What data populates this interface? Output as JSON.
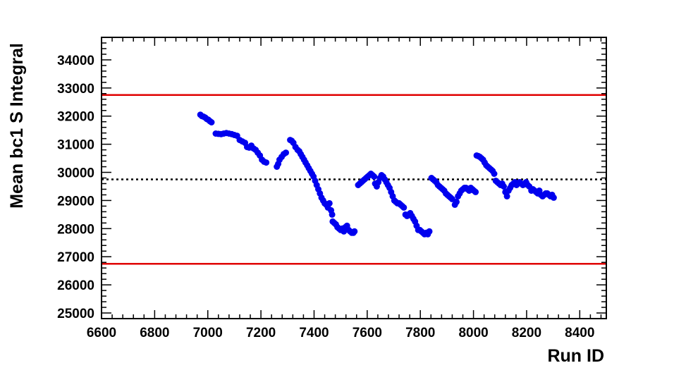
{
  "chart_data": {
    "type": "scatter",
    "xlabel": "Run ID",
    "ylabel": "Mean bc1 S Integral",
    "xlim": [
      6600,
      8500
    ],
    "ylim": [
      24800,
      34800
    ],
    "xticks": [
      6600,
      6800,
      7000,
      7200,
      7400,
      7600,
      7800,
      8000,
      8200,
      8400
    ],
    "yticks": [
      25000,
      26000,
      27000,
      28000,
      29000,
      30000,
      31000,
      32000,
      33000,
      34000
    ],
    "grid": false,
    "legend": "none",
    "reference_lines": [
      {
        "y": 32750,
        "color": "#e00000",
        "style": "solid"
      },
      {
        "y": 29750,
        "color": "#000000",
        "style": "dotted"
      },
      {
        "y": 26750,
        "color": "#e00000",
        "style": "solid"
      }
    ],
    "series": [
      {
        "color": "#0000ee",
        "points": [
          [
            6972,
            32050
          ],
          [
            6978,
            32000
          ],
          [
            6984,
            31980
          ],
          [
            6990,
            31950
          ],
          [
            6996,
            31900
          ],
          [
            7002,
            31870
          ],
          [
            7008,
            31820
          ],
          [
            7014,
            31780
          ],
          [
            7030,
            31380
          ],
          [
            7040,
            31370
          ],
          [
            7050,
            31360
          ],
          [
            7060,
            31380
          ],
          [
            7070,
            31400
          ],
          [
            7080,
            31380
          ],
          [
            7090,
            31360
          ],
          [
            7100,
            31330
          ],
          [
            7110,
            31300
          ],
          [
            7120,
            31150
          ],
          [
            7130,
            31100
          ],
          [
            7140,
            31050
          ],
          [
            7148,
            30900
          ],
          [
            7156,
            30880
          ],
          [
            7164,
            30950
          ],
          [
            7172,
            30850
          ],
          [
            7180,
            30800
          ],
          [
            7188,
            30700
          ],
          [
            7196,
            30600
          ],
          [
            7204,
            30450
          ],
          [
            7212,
            30380
          ],
          [
            7220,
            30350
          ],
          [
            7260,
            30200
          ],
          [
            7265,
            30300
          ],
          [
            7270,
            30450
          ],
          [
            7278,
            30550
          ],
          [
            7286,
            30650
          ],
          [
            7294,
            30700
          ],
          [
            7310,
            31150
          ],
          [
            7316,
            31120
          ],
          [
            7322,
            31050
          ],
          [
            7330,
            30900
          ],
          [
            7338,
            30800
          ],
          [
            7344,
            30750
          ],
          [
            7350,
            30650
          ],
          [
            7356,
            30550
          ],
          [
            7362,
            30450
          ],
          [
            7368,
            30350
          ],
          [
            7374,
            30250
          ],
          [
            7380,
            30150
          ],
          [
            7386,
            30050
          ],
          [
            7392,
            29950
          ],
          [
            7398,
            29850
          ],
          [
            7404,
            29700
          ],
          [
            7410,
            29550
          ],
          [
            7416,
            29400
          ],
          [
            7422,
            29250
          ],
          [
            7428,
            29100
          ],
          [
            7434,
            29000
          ],
          [
            7440,
            28900
          ],
          [
            7446,
            28850
          ],
          [
            7452,
            28750
          ],
          [
            7458,
            28900
          ],
          [
            7464,
            28650
          ],
          [
            7468,
            28500
          ],
          [
            7470,
            28250
          ],
          [
            7476,
            28200
          ],
          [
            7482,
            28150
          ],
          [
            7488,
            28050
          ],
          [
            7494,
            28000
          ],
          [
            7500,
            27950
          ],
          [
            7506,
            28000
          ],
          [
            7512,
            27900
          ],
          [
            7518,
            28050
          ],
          [
            7524,
            28100
          ],
          [
            7530,
            27950
          ],
          [
            7536,
            27900
          ],
          [
            7542,
            27850
          ],
          [
            7548,
            27850
          ],
          [
            7552,
            27900
          ],
          [
            7566,
            29550
          ],
          [
            7572,
            29600
          ],
          [
            7578,
            29650
          ],
          [
            7584,
            29700
          ],
          [
            7590,
            29750
          ],
          [
            7596,
            29800
          ],
          [
            7602,
            29850
          ],
          [
            7608,
            29900
          ],
          [
            7614,
            29950
          ],
          [
            7620,
            29900
          ],
          [
            7626,
            29850
          ],
          [
            7630,
            29600
          ],
          [
            7636,
            29500
          ],
          [
            7642,
            29650
          ],
          [
            7648,
            29800
          ],
          [
            7654,
            29900
          ],
          [
            7660,
            29850
          ],
          [
            7666,
            29750
          ],
          [
            7672,
            29650
          ],
          [
            7678,
            29550
          ],
          [
            7684,
            29450
          ],
          [
            7690,
            29300
          ],
          [
            7696,
            29150
          ],
          [
            7702,
            29000
          ],
          [
            7708,
            28950
          ],
          [
            7714,
            28900
          ],
          [
            7720,
            28900
          ],
          [
            7726,
            28850
          ],
          [
            7732,
            28800
          ],
          [
            7738,
            28750
          ],
          [
            7744,
            28500
          ],
          [
            7750,
            28450
          ],
          [
            7756,
            28500
          ],
          [
            7762,
            28550
          ],
          [
            7768,
            28450
          ],
          [
            7774,
            28350
          ],
          [
            7780,
            28250
          ],
          [
            7786,
            28100
          ],
          [
            7792,
            27950
          ],
          [
            7798,
            27950
          ],
          [
            7804,
            27900
          ],
          [
            7810,
            27850
          ],
          [
            7816,
            27800
          ],
          [
            7822,
            27850
          ],
          [
            7828,
            27800
          ],
          [
            7834,
            27900
          ],
          [
            7842,
            29800
          ],
          [
            7848,
            29750
          ],
          [
            7854,
            29700
          ],
          [
            7860,
            29650
          ],
          [
            7866,
            29550
          ],
          [
            7872,
            29500
          ],
          [
            7878,
            29450
          ],
          [
            7884,
            29400
          ],
          [
            7890,
            29350
          ],
          [
            7896,
            29250
          ],
          [
            7902,
            29200
          ],
          [
            7908,
            29150
          ],
          [
            7914,
            29100
          ],
          [
            7920,
            29050
          ],
          [
            7930,
            28850
          ],
          [
            7936,
            28950
          ],
          [
            7942,
            29150
          ],
          [
            7948,
            29250
          ],
          [
            7954,
            29350
          ],
          [
            7960,
            29400
          ],
          [
            7966,
            29450
          ],
          [
            7972,
            29450
          ],
          [
            7978,
            29400
          ],
          [
            7984,
            29350
          ],
          [
            7990,
            29450
          ],
          [
            7996,
            29400
          ],
          [
            8002,
            29350
          ],
          [
            8008,
            29300
          ],
          [
            8012,
            30600
          ],
          [
            8018,
            30580
          ],
          [
            8024,
            30550
          ],
          [
            8030,
            30500
          ],
          [
            8036,
            30450
          ],
          [
            8042,
            30350
          ],
          [
            8048,
            30250
          ],
          [
            8054,
            30200
          ],
          [
            8060,
            30150
          ],
          [
            8066,
            30100
          ],
          [
            8072,
            30050
          ],
          [
            8078,
            29950
          ],
          [
            8084,
            29700
          ],
          [
            8090,
            29650
          ],
          [
            8096,
            29600
          ],
          [
            8102,
            29550
          ],
          [
            8108,
            29600
          ],
          [
            8114,
            29500
          ],
          [
            8120,
            29300
          ],
          [
            8126,
            29150
          ],
          [
            8132,
            29350
          ],
          [
            8138,
            29450
          ],
          [
            8144,
            29550
          ],
          [
            8150,
            29600
          ],
          [
            8156,
            29650
          ],
          [
            8162,
            29550
          ],
          [
            8168,
            29600
          ],
          [
            8174,
            29650
          ],
          [
            8180,
            29600
          ],
          [
            8186,
            29550
          ],
          [
            8192,
            29600
          ],
          [
            8198,
            29650
          ],
          [
            8204,
            29550
          ],
          [
            8210,
            29500
          ],
          [
            8218,
            29350
          ],
          [
            8224,
            29400
          ],
          [
            8230,
            29350
          ],
          [
            8236,
            29300
          ],
          [
            8242,
            29250
          ],
          [
            8248,
            29350
          ],
          [
            8254,
            29200
          ],
          [
            8260,
            29150
          ],
          [
            8266,
            29200
          ],
          [
            8272,
            29250
          ],
          [
            8278,
            29250
          ],
          [
            8284,
            29200
          ],
          [
            8290,
            29150
          ],
          [
            8296,
            29200
          ],
          [
            8302,
            29100
          ]
        ]
      }
    ]
  }
}
